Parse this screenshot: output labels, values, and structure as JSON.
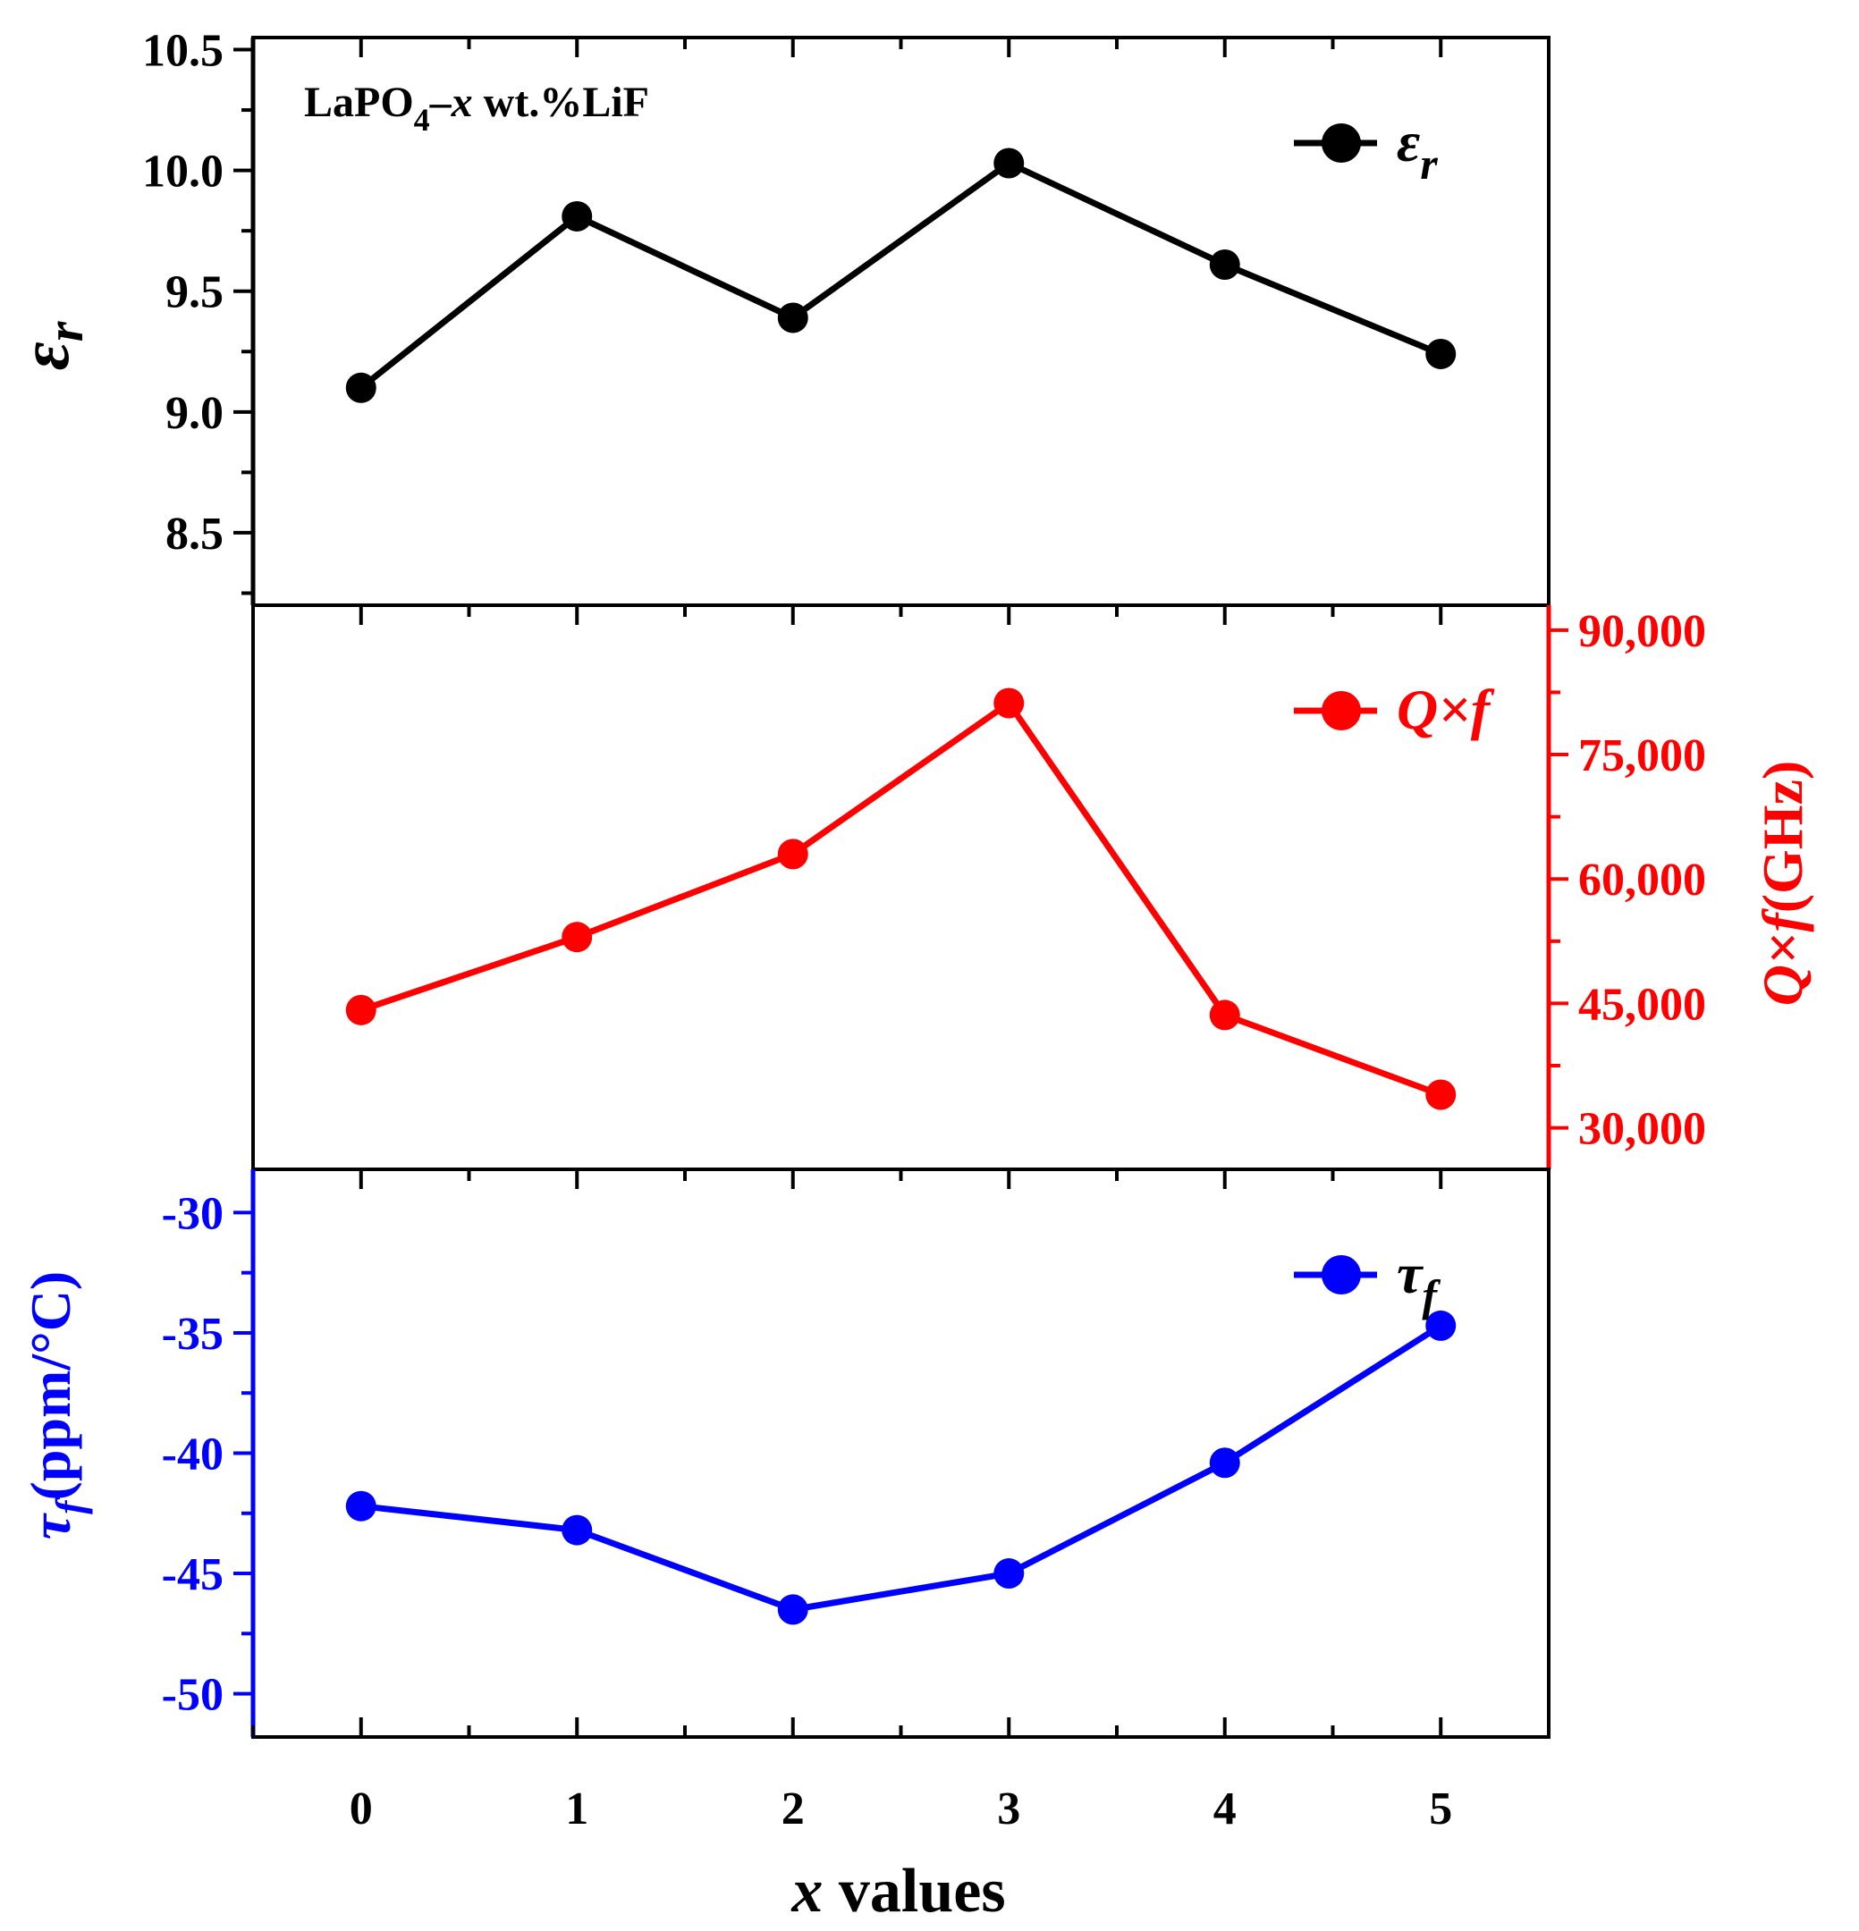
{
  "chart_data": {
    "type": "line",
    "layout": "stacked-panels",
    "x": [
      0,
      1,
      2,
      3,
      4,
      5
    ],
    "x_tick_labels": [
      "0",
      "1",
      "2",
      "3",
      "4",
      "5"
    ],
    "xlim": [
      -0.5,
      5.5
    ],
    "xlabel": {
      "var": "x",
      "rest": " values"
    },
    "annotation": {
      "main": "LaPO",
      "sub": "4",
      "dash": "–",
      "var": "x",
      "rest": " wt.%LiF"
    },
    "panels": [
      {
        "name": "epsilon-r",
        "color": "#000000",
        "ylim": [
          8.2,
          10.55
        ],
        "yticks": [
          8.5,
          9.0,
          9.5,
          10.0,
          10.5
        ],
        "ytick_labels": [
          "8.5",
          "9.0",
          "9.5",
          "10.0",
          "10.5"
        ],
        "axis_side": "left",
        "ylabel": {
          "main": "ε",
          "sub": "r",
          "rest": ""
        },
        "legend": {
          "main": "ε",
          "sub": "r",
          "position": "top-right"
        },
        "series": [
          {
            "name": "εr",
            "values": [
              9.1,
              9.81,
              9.39,
              10.03,
              9.61,
              9.24
            ]
          }
        ]
      },
      {
        "name": "q-times-f",
        "color": "#ff0000",
        "ylim": [
          25000,
          93000
        ],
        "yticks": [
          30000,
          45000,
          60000,
          75000,
          90000
        ],
        "ytick_labels": [
          "30,000",
          "45,000",
          "60,000",
          "75,000",
          "90,000"
        ],
        "axis_side": "right",
        "ylabel": {
          "main": "Q×f",
          "sub": "",
          "rest": "(GHz)"
        },
        "legend": {
          "main": "Q×f",
          "sub": "",
          "position": "top-right"
        },
        "series": [
          {
            "name": "Q×f",
            "values": [
              44200,
              53000,
              63000,
              81200,
              43600,
              34000
            ]
          }
        ]
      },
      {
        "name": "tau-f",
        "color": "#0000ff",
        "ylim": [
          -51.8,
          -28.2
        ],
        "yticks": [
          -50,
          -45,
          -40,
          -35,
          -30
        ],
        "ytick_labels": [
          "-50",
          "-45",
          "-40",
          "-35",
          "-30"
        ],
        "axis_side": "left",
        "ylabel": {
          "main": "τ",
          "sub": "f",
          "rest": "(ppm/°C)"
        },
        "legend": {
          "main": "τ",
          "sub": "f",
          "position": "top-right"
        },
        "series": [
          {
            "name": "τf",
            "values": [
              -42.2,
              -43.2,
              -46.5,
              -45.0,
              -40.4,
              -34.7
            ]
          }
        ]
      }
    ]
  }
}
